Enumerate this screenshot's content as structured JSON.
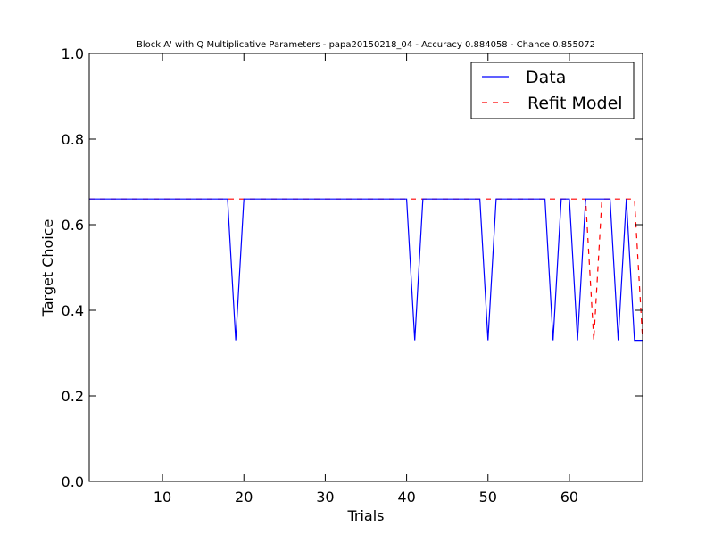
{
  "chart_data": {
    "type": "line",
    "title": "Block A' with Q Multiplicative Parameters - papa20150218_04 - Accuracy 0.884058 - Chance 0.855072",
    "xlabel": "Trials",
    "ylabel": "Target Choice",
    "xlim": [
      1,
      69
    ],
    "ylim": [
      0.0,
      1.0
    ],
    "xticks": [
      10,
      20,
      30,
      40,
      50,
      60
    ],
    "yticks": [
      0.0,
      0.2,
      0.4,
      0.6,
      0.8,
      1.0
    ],
    "xtick_labels": [
      "10",
      "20",
      "30",
      "40",
      "50",
      "60"
    ],
    "ytick_labels": [
      "0.0",
      "0.2",
      "0.4",
      "0.6",
      "0.8",
      "1.0"
    ],
    "legend_position": "top-right",
    "grid": false,
    "series": [
      {
        "name": "Data",
        "color": "#0000ff",
        "style": "solid",
        "x": [
          1,
          2,
          3,
          4,
          5,
          6,
          7,
          8,
          9,
          10,
          11,
          12,
          13,
          14,
          15,
          16,
          17,
          18,
          19,
          20,
          21,
          22,
          23,
          24,
          25,
          26,
          27,
          28,
          29,
          30,
          31,
          32,
          33,
          34,
          35,
          36,
          37,
          38,
          39,
          40,
          41,
          42,
          43,
          44,
          45,
          46,
          47,
          48,
          49,
          50,
          51,
          52,
          53,
          54,
          55,
          56,
          57,
          58,
          59,
          60,
          61,
          62,
          63,
          64,
          65,
          66,
          67,
          68,
          69
        ],
        "y": [
          0.66,
          0.66,
          0.66,
          0.66,
          0.66,
          0.66,
          0.66,
          0.66,
          0.66,
          0.66,
          0.66,
          0.66,
          0.66,
          0.66,
          0.66,
          0.66,
          0.66,
          0.66,
          0.33,
          0.66,
          0.66,
          0.66,
          0.66,
          0.66,
          0.66,
          0.66,
          0.66,
          0.66,
          0.66,
          0.66,
          0.66,
          0.66,
          0.66,
          0.66,
          0.66,
          0.66,
          0.66,
          0.66,
          0.66,
          0.66,
          0.33,
          0.66,
          0.66,
          0.66,
          0.66,
          0.66,
          0.66,
          0.66,
          0.66,
          0.33,
          0.66,
          0.66,
          0.66,
          0.66,
          0.66,
          0.66,
          0.66,
          0.33,
          0.66,
          0.66,
          0.33,
          0.66,
          0.66,
          0.66,
          0.66,
          0.33,
          0.66,
          0.33,
          0.33
        ]
      },
      {
        "name": "Refit Model",
        "color": "#ff0000",
        "style": "dashed",
        "x": [
          1,
          2,
          3,
          4,
          5,
          6,
          7,
          8,
          9,
          10,
          11,
          12,
          13,
          14,
          15,
          16,
          17,
          18,
          19,
          20,
          21,
          22,
          23,
          24,
          25,
          26,
          27,
          28,
          29,
          30,
          31,
          32,
          33,
          34,
          35,
          36,
          37,
          38,
          39,
          40,
          41,
          42,
          43,
          44,
          45,
          46,
          47,
          48,
          49,
          50,
          51,
          52,
          53,
          54,
          55,
          56,
          57,
          58,
          59,
          60,
          61,
          62,
          63,
          64,
          65,
          66,
          67,
          68,
          69
        ],
        "y": [
          0.66,
          0.66,
          0.66,
          0.66,
          0.66,
          0.66,
          0.66,
          0.66,
          0.66,
          0.66,
          0.66,
          0.66,
          0.66,
          0.66,
          0.66,
          0.66,
          0.66,
          0.66,
          0.66,
          0.66,
          0.66,
          0.66,
          0.66,
          0.66,
          0.66,
          0.66,
          0.66,
          0.66,
          0.66,
          0.66,
          0.66,
          0.66,
          0.66,
          0.66,
          0.66,
          0.66,
          0.66,
          0.66,
          0.66,
          0.66,
          0.66,
          0.66,
          0.66,
          0.66,
          0.66,
          0.66,
          0.66,
          0.66,
          0.66,
          0.66,
          0.66,
          0.66,
          0.66,
          0.66,
          0.66,
          0.66,
          0.66,
          0.66,
          0.66,
          0.66,
          0.66,
          0.66,
          0.33,
          0.66,
          0.66,
          0.66,
          0.66,
          0.66,
          0.33
        ]
      }
    ]
  }
}
